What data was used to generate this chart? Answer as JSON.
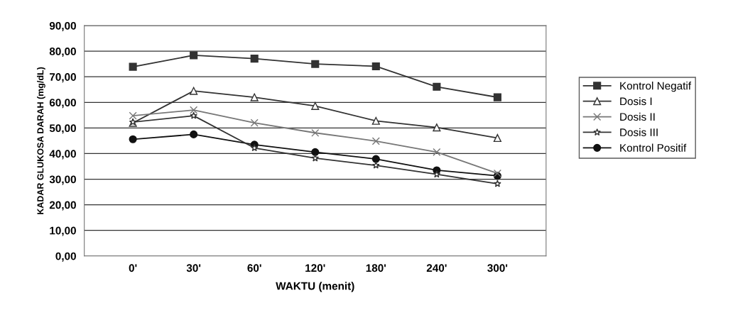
{
  "chart_data": {
    "type": "line",
    "xlabel": "WAKTU (menit)",
    "ylabel": "KADAR GLUKOSA DARAH (mg/dL)",
    "categories": [
      "0'",
      "30'",
      "60'",
      "120'",
      "180'",
      "240'",
      "300'"
    ],
    "series": [
      {
        "name": "Kontrol Negatif",
        "color": "#333333",
        "marker": "square",
        "values": [
          73.9,
          78.4,
          77.1,
          75.0,
          74.1,
          66.1,
          62.0
        ]
      },
      {
        "name": "Dosis I",
        "color": "#333333",
        "marker": "triangle",
        "values": [
          52.0,
          64.5,
          62.0,
          58.6,
          52.8,
          50.2,
          46.1
        ]
      },
      {
        "name": "Dosis II",
        "color": "#777777",
        "marker": "cross",
        "values": [
          54.8,
          57.0,
          52.0,
          48.1,
          44.9,
          40.6,
          32.3
        ]
      },
      {
        "name": "Dosis III",
        "color": "#333333",
        "marker": "star",
        "values": [
          52.3,
          54.8,
          42.2,
          38.2,
          35.4,
          31.9,
          28.2
        ]
      },
      {
        "name": "Kontrol Positif",
        "color": "#111111",
        "marker": "circle",
        "values": [
          45.6,
          47.5,
          43.5,
          40.6,
          37.9,
          33.5,
          31.3
        ]
      }
    ],
    "ylim": [
      0,
      90
    ],
    "yticks": [
      {
        "value": 0,
        "label": "0,00"
      },
      {
        "value": 10,
        "label": "10,00"
      },
      {
        "value": 20,
        "label": "20,00"
      },
      {
        "value": 30,
        "label": "30,00"
      },
      {
        "value": 40,
        "label": "40,00"
      },
      {
        "value": 50,
        "label": "50,00"
      },
      {
        "value": 60,
        "label": "60,00"
      },
      {
        "value": 70,
        "label": "70,00"
      },
      {
        "value": 80,
        "label": "80,00"
      },
      {
        "value": 90,
        "label": "90,00"
      }
    ],
    "grid": "y",
    "legend": "right",
    "line_style": "solid"
  }
}
